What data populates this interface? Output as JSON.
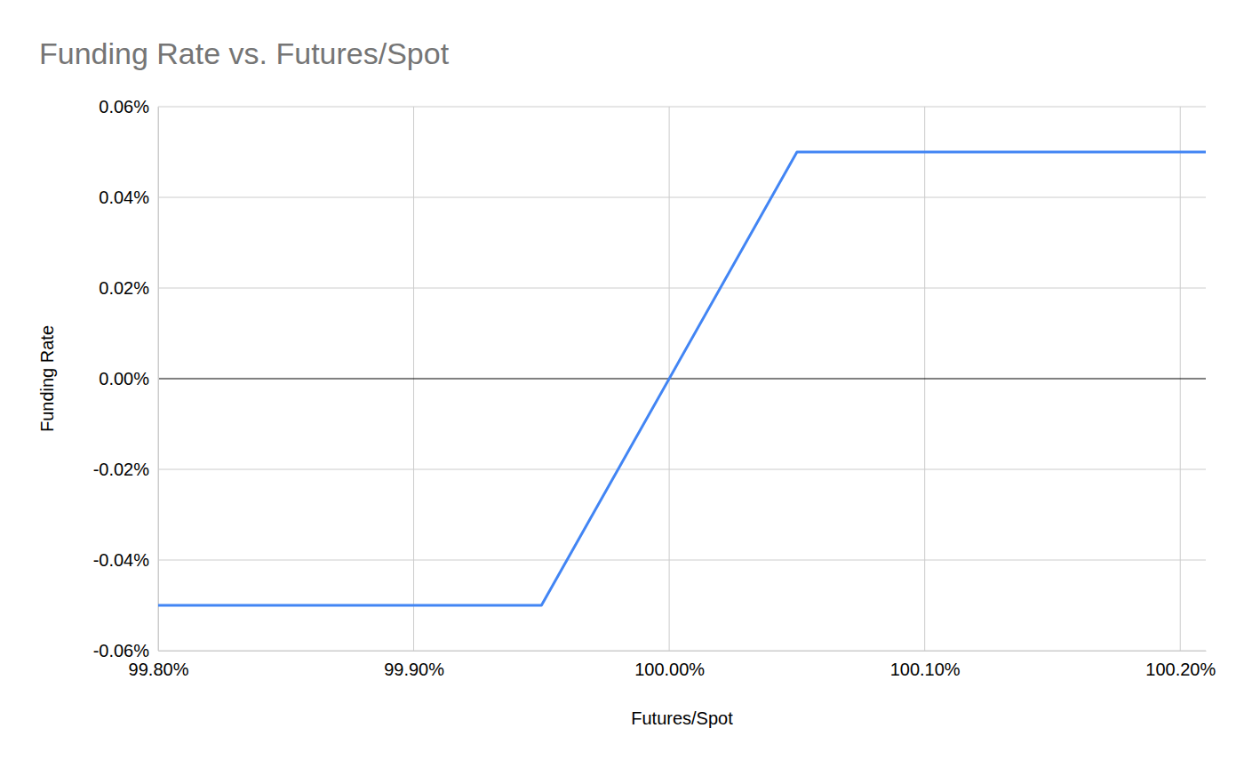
{
  "chart_data": {
    "type": "line",
    "title": "Funding Rate vs. Futures/Spot",
    "x_label": "Futures/Spot",
    "y_label": "Funding Rate",
    "x": [
      99.8,
      99.95,
      100.05,
      100.21
    ],
    "values": [
      -0.05,
      -0.05,
      0.05,
      0.05
    ],
    "color": "#4285f4",
    "xlim": [
      99.8,
      100.21
    ],
    "xticks": [
      {
        "value": 99.8,
        "label": "99.80%"
      },
      {
        "value": 99.9,
        "label": "99.90%"
      },
      {
        "value": 100.0,
        "label": "100.00%"
      },
      {
        "value": 100.1,
        "label": "100.10%"
      },
      {
        "value": 100.2,
        "label": "100.20%"
      }
    ],
    "ylim": [
      -0.06,
      0.06
    ],
    "yticks": [
      {
        "value": -0.06,
        "label": "-0.06%"
      },
      {
        "value": -0.04,
        "label": "-0.04%"
      },
      {
        "value": -0.02,
        "label": "-0.02%"
      },
      {
        "value": 0,
        "label": "0.00%"
      },
      {
        "value": 0.02,
        "label": "0.02%"
      },
      {
        "value": 0.04,
        "label": "0.04%"
      },
      {
        "value": 0.06,
        "label": "0.06%"
      }
    ],
    "grid": true
  }
}
